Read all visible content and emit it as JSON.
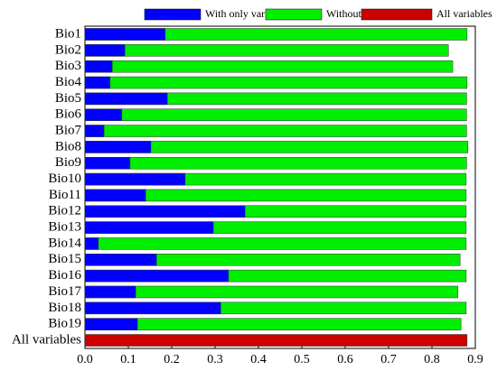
{
  "chart_data": {
    "type": "bar",
    "orientation": "horizontal",
    "overlap": true,
    "categories": [
      "Bio1",
      "Bio2",
      "Bio3",
      "Bio4",
      "Bio5",
      "Bio6",
      "Bio7",
      "Bio8",
      "Bio9",
      "Bio10",
      "Bio11",
      "Bio12",
      "Bio13",
      "Bio14",
      "Bio15",
      "Bio16",
      "Bio17",
      "Bio18",
      "Bio19",
      "All variables"
    ],
    "series": [
      {
        "name": "Without variable",
        "color": "#00ee00",
        "values": [
          0.881,
          0.838,
          0.848,
          0.881,
          0.88,
          0.88,
          0.88,
          0.883,
          0.88,
          0.879,
          0.879,
          0.879,
          0.879,
          0.879,
          0.865,
          0.879,
          0.86,
          0.879,
          0.867,
          null
        ]
      },
      {
        "name": "With only variable",
        "color": "#0000ff",
        "values": [
          0.185,
          0.092,
          0.063,
          0.058,
          0.19,
          0.085,
          0.044,
          0.152,
          0.104,
          0.231,
          0.14,
          0.369,
          0.296,
          0.031,
          0.165,
          0.331,
          0.117,
          0.313,
          0.121,
          null
        ]
      },
      {
        "name": "All variables",
        "color": "#cc0000",
        "values": [
          null,
          null,
          null,
          null,
          null,
          null,
          null,
          null,
          null,
          null,
          null,
          null,
          null,
          null,
          null,
          null,
          null,
          null,
          null,
          0.881
        ]
      }
    ],
    "legend_order": [
      1,
      0,
      2
    ],
    "xlim": [
      0,
      0.9
    ],
    "xticks": [
      {
        "value": 0,
        "label": "0.0"
      },
      0.1,
      0.2,
      0.3,
      0.4,
      0.5,
      0.6,
      0.7,
      0.8,
      0.9
    ]
  }
}
